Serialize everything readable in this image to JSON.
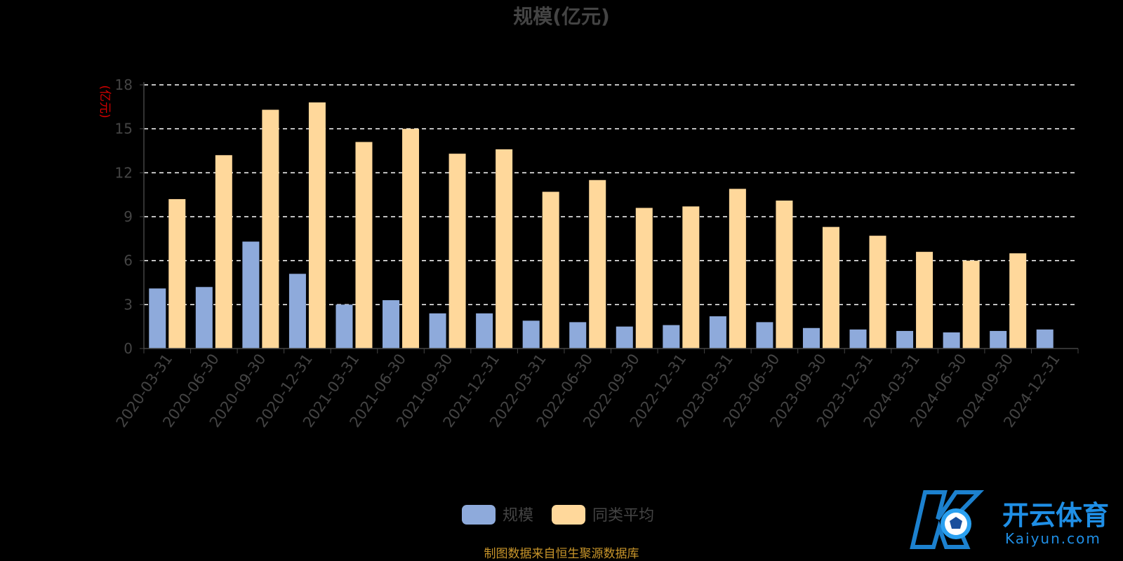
{
  "chart_data": {
    "type": "bar",
    "title": "规模(亿元)",
    "ylabel": "(亿元)",
    "ylim": [
      0,
      18
    ],
    "yticks": [
      0,
      3,
      6,
      9,
      12,
      15,
      18
    ],
    "grid": true,
    "legend_position": "bottom",
    "categories": [
      "2020-03-31",
      "2020-06-30",
      "2020-09-30",
      "2020-12-31",
      "2021-03-31",
      "2021-06-30",
      "2021-09-30",
      "2021-12-31",
      "2022-03-31",
      "2022-06-30",
      "2022-09-30",
      "2022-12-31",
      "2023-03-31",
      "2023-06-30",
      "2023-09-30",
      "2023-12-31",
      "2024-03-31",
      "2024-06-30",
      "2024-09-30",
      "2024-12-31"
    ],
    "series": [
      {
        "name": "规模",
        "color": "#8eaadb",
        "values": [
          4.1,
          4.2,
          7.3,
          5.1,
          3.0,
          3.3,
          2.4,
          2.4,
          1.9,
          1.8,
          1.5,
          1.6,
          2.2,
          1.8,
          1.4,
          1.3,
          1.2,
          1.1,
          1.2,
          1.3
        ]
      },
      {
        "name": "同类平均",
        "color": "#ffd89b",
        "values": [
          10.2,
          13.2,
          16.3,
          16.8,
          14.1,
          15.0,
          13.3,
          13.6,
          10.7,
          11.5,
          9.6,
          9.7,
          10.9,
          10.1,
          8.3,
          7.7,
          6.6,
          6.0,
          6.5,
          null
        ]
      }
    ]
  },
  "footer": {
    "source": "制图数据来自恒生聚源数据库"
  },
  "watermark": {
    "cn": "开云体育",
    "en": "Kaiyun.com",
    "accent": "#1f8fe6"
  }
}
